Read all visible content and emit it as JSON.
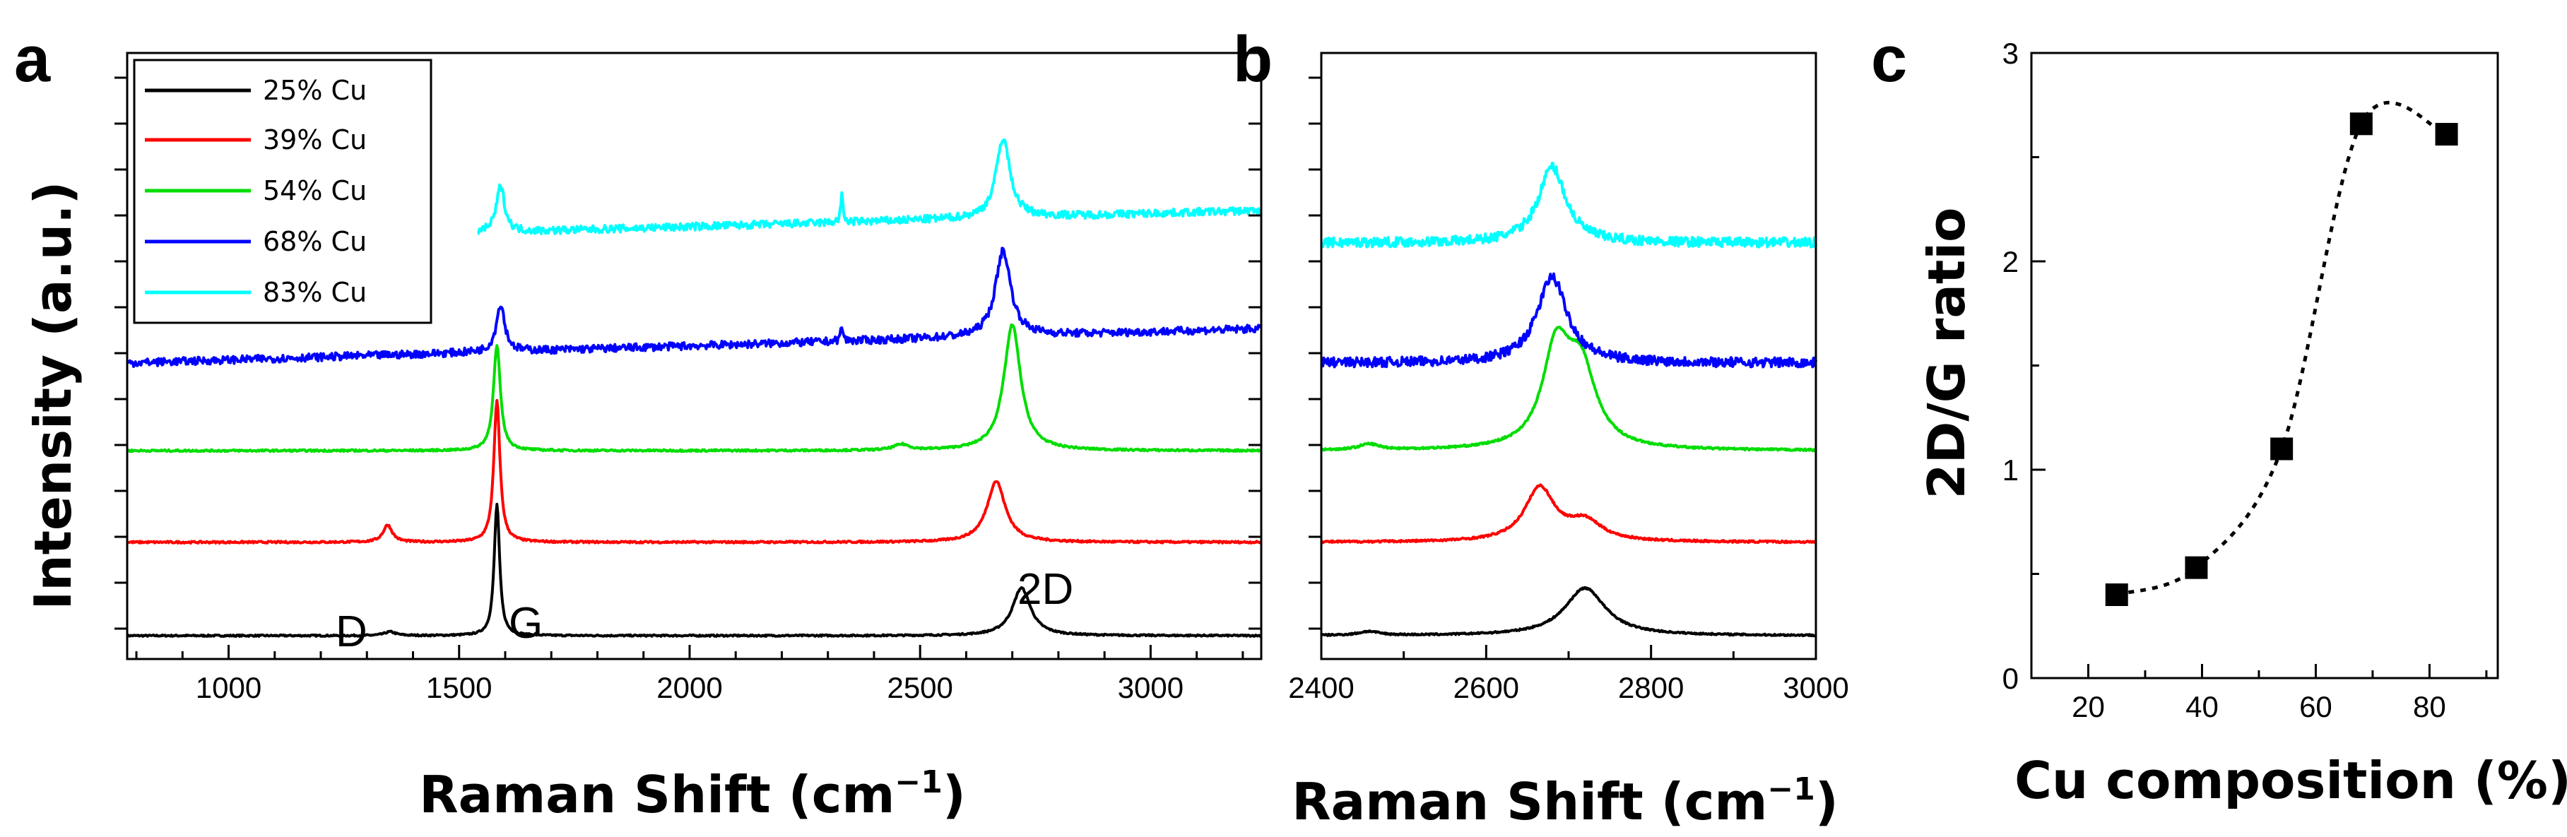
{
  "chart_data": [
    {
      "panel": "a",
      "type": "line",
      "xlabel": "Raman Shift (cm",
      "xlabel_sup": "−1",
      "xlabel_end": ")",
      "ylabel": "Intensity (a.u.)",
      "xlim": [
        780,
        3240
      ],
      "xticks": [
        "1000",
        "1500",
        "2000",
        "2500",
        "3000"
      ],
      "xtick_values": [
        1000,
        1500,
        2000,
        2500,
        3000
      ],
      "legend_position": "top-left",
      "annotations": [
        {
          "text": "D",
          "x": 1300
        },
        {
          "text": "G",
          "x": 1680
        },
        {
          "text": "2D",
          "x": 2880
        }
      ],
      "series": [
        {
          "name": "25% Cu",
          "color": "#000000",
          "offset": 0.0,
          "noise": 0.004,
          "peaks": [
            {
              "center": 1350,
              "height": 0.02,
              "width": 15
            },
            {
              "center": 1582,
              "height": 0.69,
              "width": 7
            },
            {
              "center": 2720,
              "height": 0.25,
              "width": 24
            }
          ]
        },
        {
          "name": "39% Cu",
          "color": "#ff0000",
          "offset": 0.49,
          "noise": 0.005,
          "peaks": [
            {
              "center": 1345,
              "height": 0.09,
              "width": 12
            },
            {
              "center": 1582,
              "height": 0.74,
              "width": 8
            },
            {
              "center": 2665,
              "height": 0.32,
              "width": 24
            }
          ]
        },
        {
          "name": "54% Cu",
          "color": "#00dd00",
          "offset": 0.97,
          "noise": 0.005,
          "peaks": [
            {
              "center": 1582,
              "height": 0.55,
              "width": 9
            },
            {
              "center": 2460,
              "height": 0.03,
              "width": 20
            },
            {
              "center": 2700,
              "height": 0.66,
              "width": 22
            }
          ]
        },
        {
          "name": "68% Cu",
          "color": "#0000ff",
          "offset": 1.43,
          "slope": 0.18,
          "noise": 0.02,
          "peaks": [
            {
              "center": 1590,
              "height": 0.25,
              "width": 11
            },
            {
              "center": 2330,
              "height": 0.08,
              "width": 3
            },
            {
              "center": 2680,
              "height": 0.45,
              "width": 20
            }
          ]
        },
        {
          "name": "83% Cu",
          "color": "#00ffff",
          "offset": 2.06,
          "slope": 0.17,
          "noise": 0.02,
          "xstart": 1540,
          "peaks": [
            {
              "center": 1590,
              "height": 0.24,
              "width": 11
            },
            {
              "center": 2330,
              "height": 0.14,
              "width": 3
            },
            {
              "center": 2680,
              "height": 0.42,
              "width": 18
            }
          ]
        }
      ]
    },
    {
      "panel": "b",
      "type": "line",
      "xlabel": "Raman Shift (cm",
      "xlabel_sup": "−1",
      "xlabel_end": ")",
      "xlim": [
        2400,
        3000
      ],
      "xticks": [
        "2400",
        "2600",
        "2800",
        "3000"
      ],
      "xtick_values": [
        2400,
        2600,
        2800,
        3000
      ],
      "series": [
        {
          "name": "25% Cu",
          "color": "#000000",
          "offset": 0.0,
          "noise": 0.004,
          "peaks": [
            {
              "center": 2458,
              "height": 0.02,
              "width": 15
            },
            {
              "center": 2720,
              "height": 0.25,
              "width": 30
            }
          ]
        },
        {
          "name": "39% Cu",
          "color": "#ff0000",
          "offset": 0.49,
          "noise": 0.005,
          "peaks": [
            {
              "center": 2665,
              "height": 0.28,
              "width": 22
            },
            {
              "center": 2720,
              "height": 0.1,
              "width": 25
            }
          ]
        },
        {
          "name": "54% Cu",
          "color": "#00dd00",
          "offset": 0.97,
          "noise": 0.005,
          "peaks": [
            {
              "center": 2458,
              "height": 0.03,
              "width": 15
            },
            {
              "center": 2685,
              "height": 0.5,
              "width": 20
            },
            {
              "center": 2715,
              "height": 0.4,
              "width": 22
            }
          ]
        },
        {
          "name": "68% Cu",
          "color": "#0000ff",
          "offset": 1.43,
          "noise": 0.025,
          "peaks": [
            {
              "center": 2680,
              "height": 0.45,
              "width": 22
            }
          ]
        },
        {
          "name": "83% Cu",
          "color": "#00ffff",
          "offset": 2.06,
          "noise": 0.025,
          "peaks": [
            {
              "center": 2680,
              "height": 0.4,
              "width": 20
            }
          ]
        }
      ]
    },
    {
      "panel": "c",
      "type": "scatter",
      "xlabel": "Cu composition (%)",
      "ylabel": "2D/G ratio",
      "xlim": [
        10,
        92
      ],
      "ylim": [
        0,
        3
      ],
      "xticks": [
        "20",
        "40",
        "60",
        "80"
      ],
      "xtick_values": [
        20,
        40,
        60,
        80
      ],
      "yticks": [
        "0",
        "1",
        "2",
        "3"
      ],
      "ytick_values": [
        0,
        1,
        2,
        3
      ],
      "x": [
        25,
        39,
        54,
        68,
        83
      ],
      "y": [
        0.4,
        0.53,
        1.1,
        2.66,
        2.61
      ],
      "line_style": "dotted-spline"
    }
  ]
}
